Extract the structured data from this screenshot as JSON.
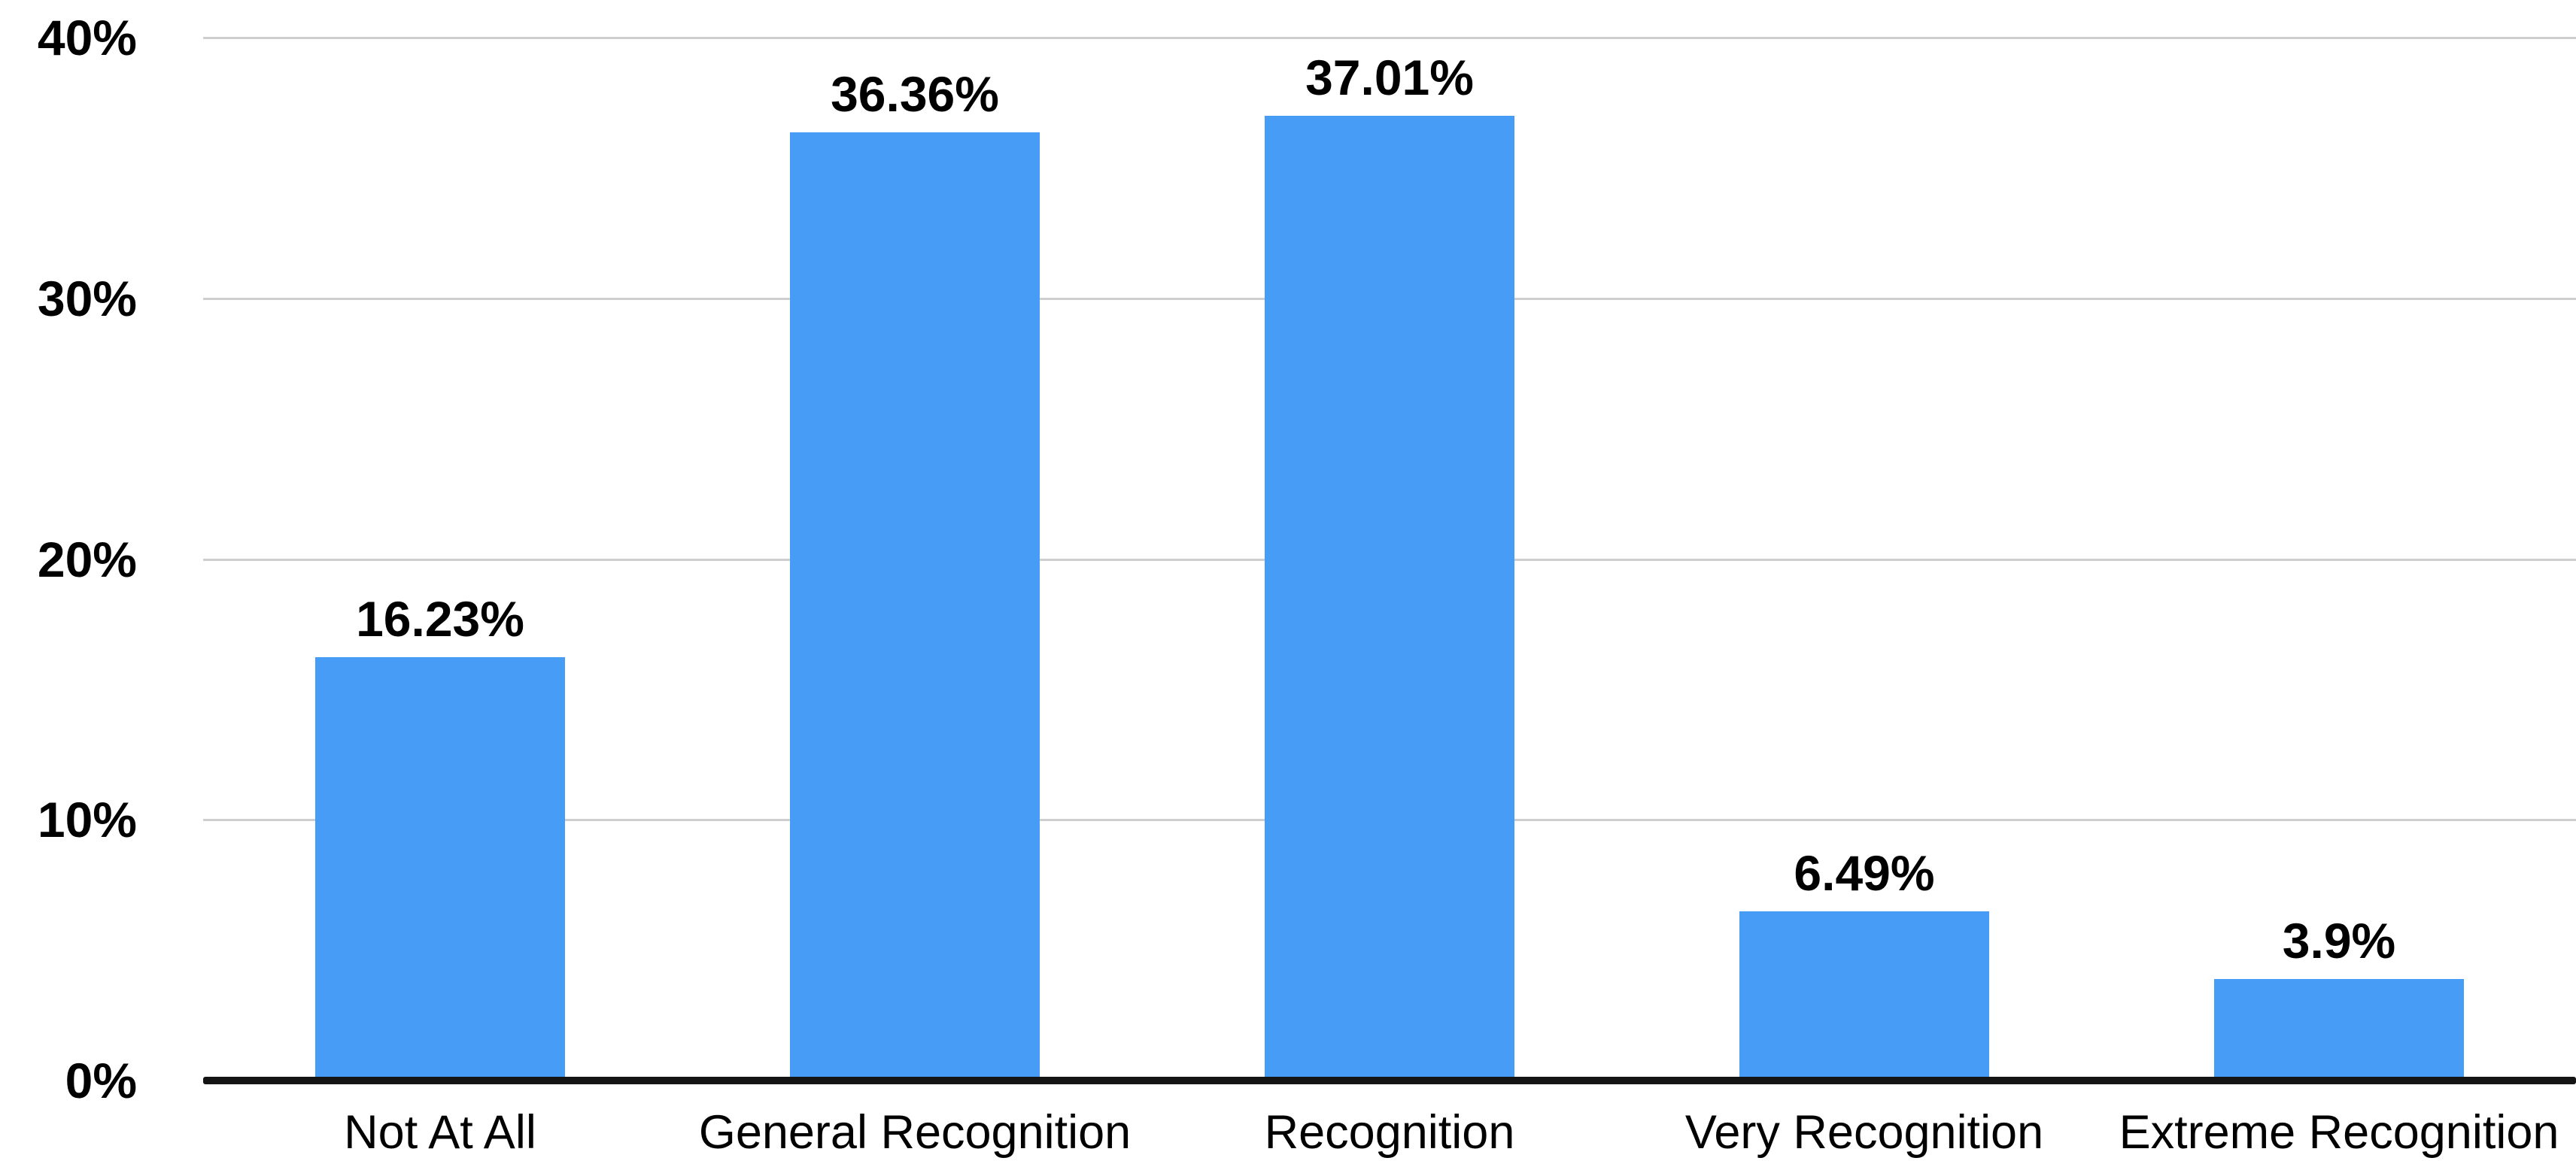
{
  "chart_data": {
    "type": "bar",
    "title": "",
    "xlabel": "",
    "ylabel": "",
    "categories": [
      "Not At All",
      "General Recognition",
      "Recognition",
      "Very Recognition",
      "Extreme Recognition"
    ],
    "values": [
      16.23,
      36.36,
      37.01,
      6.49,
      3.9
    ],
    "value_labels": [
      "16.23%",
      "36.36%",
      "37.01%",
      "6.49%",
      "3.9%"
    ],
    "ylim": [
      0,
      40
    ],
    "yticks": [
      0,
      10,
      20,
      30,
      40
    ],
    "ytick_labels": [
      "0%",
      "10%",
      "20%",
      "30%",
      "40%"
    ],
    "grid": true,
    "legend": false,
    "colors": {
      "bar": "#479CF5",
      "gridline": "#CFCFCF",
      "axis_line": "#141414",
      "text": "#000000",
      "background": "#FFFFFF"
    }
  }
}
